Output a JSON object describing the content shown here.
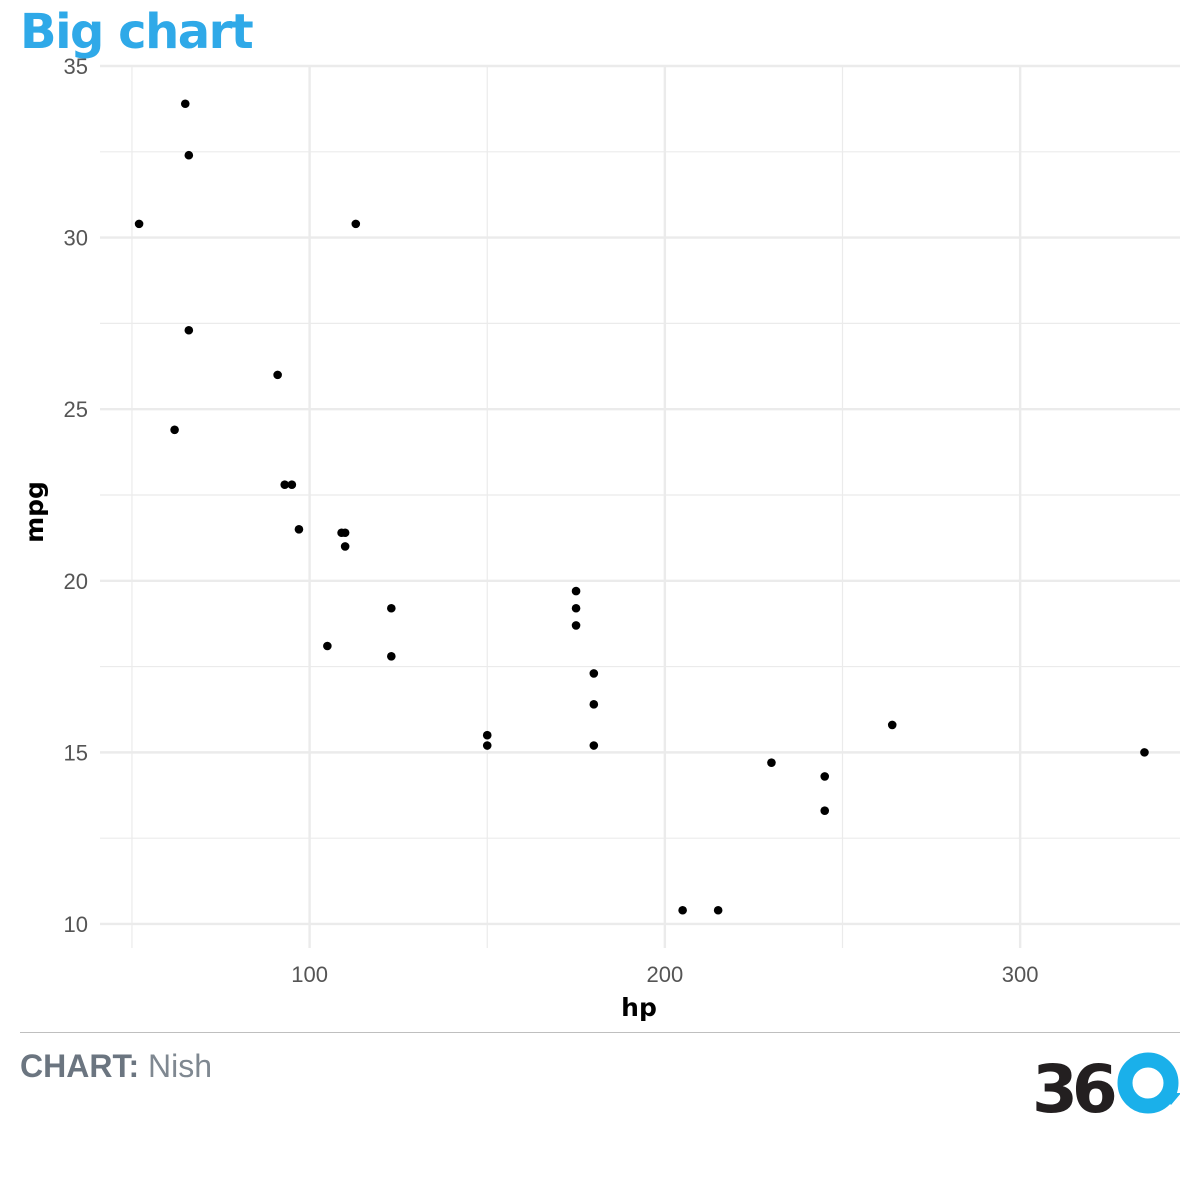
{
  "header": {
    "title": "Big chart"
  },
  "footer": {
    "caption_label": "CHART:",
    "caption_text": "Nish",
    "logo_text": "36"
  },
  "colors": {
    "title": "#2fa9e8",
    "points": "#000000",
    "grid": "#ebebeb",
    "logo_dark": "#231f20",
    "logo_accent": "#1ab0ea"
  },
  "chart_data": {
    "type": "scatter",
    "title": "Big chart",
    "xlabel": "hp",
    "ylabel": "mpg",
    "xlim": [
      41,
      345
    ],
    "ylim": [
      9.3,
      35
    ],
    "xticks": [
      100,
      200,
      300
    ],
    "xtick_labels": [
      "100",
      "200",
      "300"
    ],
    "xminor": [
      50,
      150,
      250
    ],
    "yticks": [
      10,
      15,
      20,
      25,
      30,
      35
    ],
    "ytick_labels": [
      "10",
      "15",
      "20",
      "25",
      "30",
      "35"
    ],
    "yminor": [
      12.5,
      17.5,
      22.5,
      27.5,
      32.5
    ],
    "grid": true,
    "legend": "none",
    "points": [
      {
        "x": 110,
        "y": 21.0
      },
      {
        "x": 110,
        "y": 21.4
      },
      {
        "x": 109,
        "y": 21.4
      },
      {
        "x": 93,
        "y": 22.8
      },
      {
        "x": 95,
        "y": 22.8
      },
      {
        "x": 175,
        "y": 18.7
      },
      {
        "x": 105,
        "y": 18.1
      },
      {
        "x": 245,
        "y": 14.3
      },
      {
        "x": 62,
        "y": 24.4
      },
      {
        "x": 123,
        "y": 19.2
      },
      {
        "x": 123,
        "y": 17.8
      },
      {
        "x": 180,
        "y": 16.4
      },
      {
        "x": 180,
        "y": 17.3
      },
      {
        "x": 180,
        "y": 15.2
      },
      {
        "x": 205,
        "y": 10.4
      },
      {
        "x": 215,
        "y": 10.4
      },
      {
        "x": 230,
        "y": 14.7
      },
      {
        "x": 66,
        "y": 32.4
      },
      {
        "x": 52,
        "y": 30.4
      },
      {
        "x": 65,
        "y": 33.9
      },
      {
        "x": 97,
        "y": 21.5
      },
      {
        "x": 150,
        "y": 15.5
      },
      {
        "x": 150,
        "y": 15.2
      },
      {
        "x": 245,
        "y": 13.3
      },
      {
        "x": 175,
        "y": 19.2
      },
      {
        "x": 66,
        "y": 27.3
      },
      {
        "x": 91,
        "y": 26.0
      },
      {
        "x": 113,
        "y": 30.4
      },
      {
        "x": 264,
        "y": 15.8
      },
      {
        "x": 175,
        "y": 19.7
      },
      {
        "x": 335,
        "y": 15.0
      }
    ]
  }
}
